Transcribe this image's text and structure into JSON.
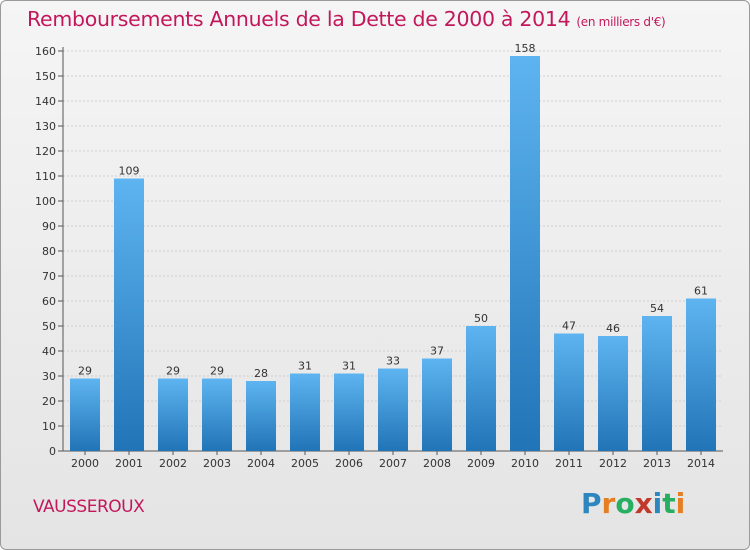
{
  "title": "Remboursements Annuels de la Dette de 2000 à 2014",
  "subtitle": "(en milliers d'€)",
  "place": "VAUSSEROUX",
  "logo": {
    "letters": [
      "P",
      "r",
      "o",
      "x",
      "i",
      "t",
      "i"
    ],
    "colors": [
      "#2e86c1",
      "#e67e22",
      "#27ae60",
      "#c0392b",
      "#2e86c1",
      "#27ae60",
      "#e67e22"
    ]
  },
  "chart_data": {
    "type": "bar",
    "categories": [
      "2000",
      "2001",
      "2002",
      "2003",
      "2004",
      "2005",
      "2006",
      "2007",
      "2008",
      "2009",
      "2010",
      "2011",
      "2012",
      "2013",
      "2014"
    ],
    "values": [
      29,
      109,
      29,
      29,
      28,
      31,
      31,
      33,
      37,
      50,
      158,
      47,
      46,
      54,
      61
    ],
    "ylim": [
      0,
      160
    ],
    "yticks": [
      0,
      10,
      20,
      30,
      40,
      50,
      60,
      70,
      80,
      90,
      100,
      110,
      120,
      130,
      140,
      150,
      160
    ],
    "grid": true,
    "bar_color": "#3a93d8"
  }
}
